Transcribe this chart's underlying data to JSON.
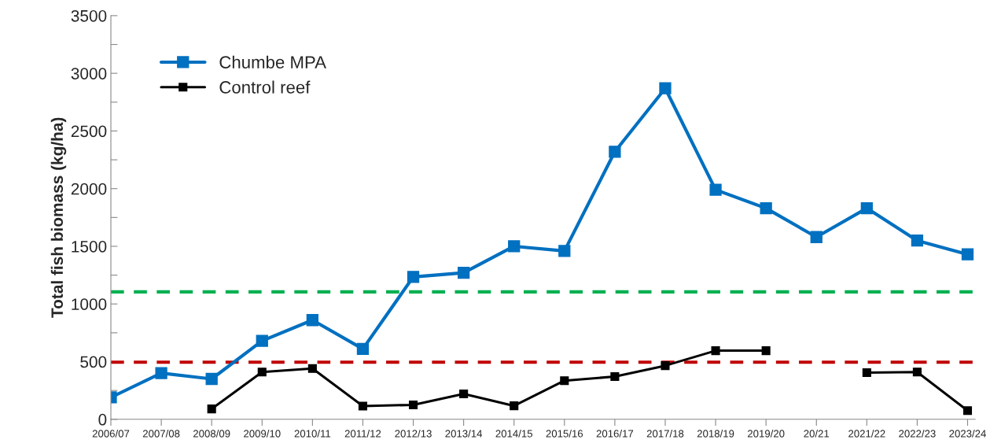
{
  "chart_data": {
    "type": "line",
    "ylabel": "Total fish biomass (kg/ha)",
    "categories": [
      "2006/07",
      "2007/08",
      "2008/09",
      "2009/10",
      "2010/11",
      "2011/12",
      "2012/13",
      "2013/14",
      "2014/15",
      "2015/16",
      "2016/17",
      "2017/18",
      "2018/19",
      "2019/20",
      "20/21",
      "2021/22",
      "2022/23",
      "2023/24"
    ],
    "series": [
      {
        "name": "Chumbe MPA",
        "color": "#0070c0",
        "values": [
          190,
          400,
          350,
          680,
          860,
          610,
          1235,
          1270,
          1500,
          1460,
          2320,
          2870,
          1990,
          1830,
          1580,
          1830,
          1550,
          1430
        ]
      },
      {
        "name": "Control reef",
        "color": "#000000",
        "values": [
          null,
          null,
          90,
          410,
          440,
          115,
          125,
          220,
          117,
          335,
          370,
          465,
          595,
          595,
          null,
          405,
          410,
          75
        ]
      }
    ],
    "ylim": [
      0,
      3500
    ],
    "yticks": [
      0,
      {
        "value": 250,
        "label": null
      },
      500,
      {
        "value": 750,
        "label": null
      },
      1000,
      {
        "value": 1250,
        "label": null
      },
      1500,
      {
        "value": 1750,
        "label": null
      },
      2000,
      {
        "value": 2250,
        "label": null
      },
      2500,
      {
        "value": 2750,
        "label": null
      },
      3000,
      {
        "value": 3250,
        "label": null
      },
      3500
    ],
    "ref_lines": [
      {
        "axis": "y",
        "value": 1105,
        "color": "#00b050",
        "line_style": "dashed"
      },
      {
        "axis": "y",
        "value": 495,
        "color": "#c00000",
        "line_style": "dashed"
      }
    ],
    "marker": "square",
    "grid": false,
    "legend": "top left"
  }
}
